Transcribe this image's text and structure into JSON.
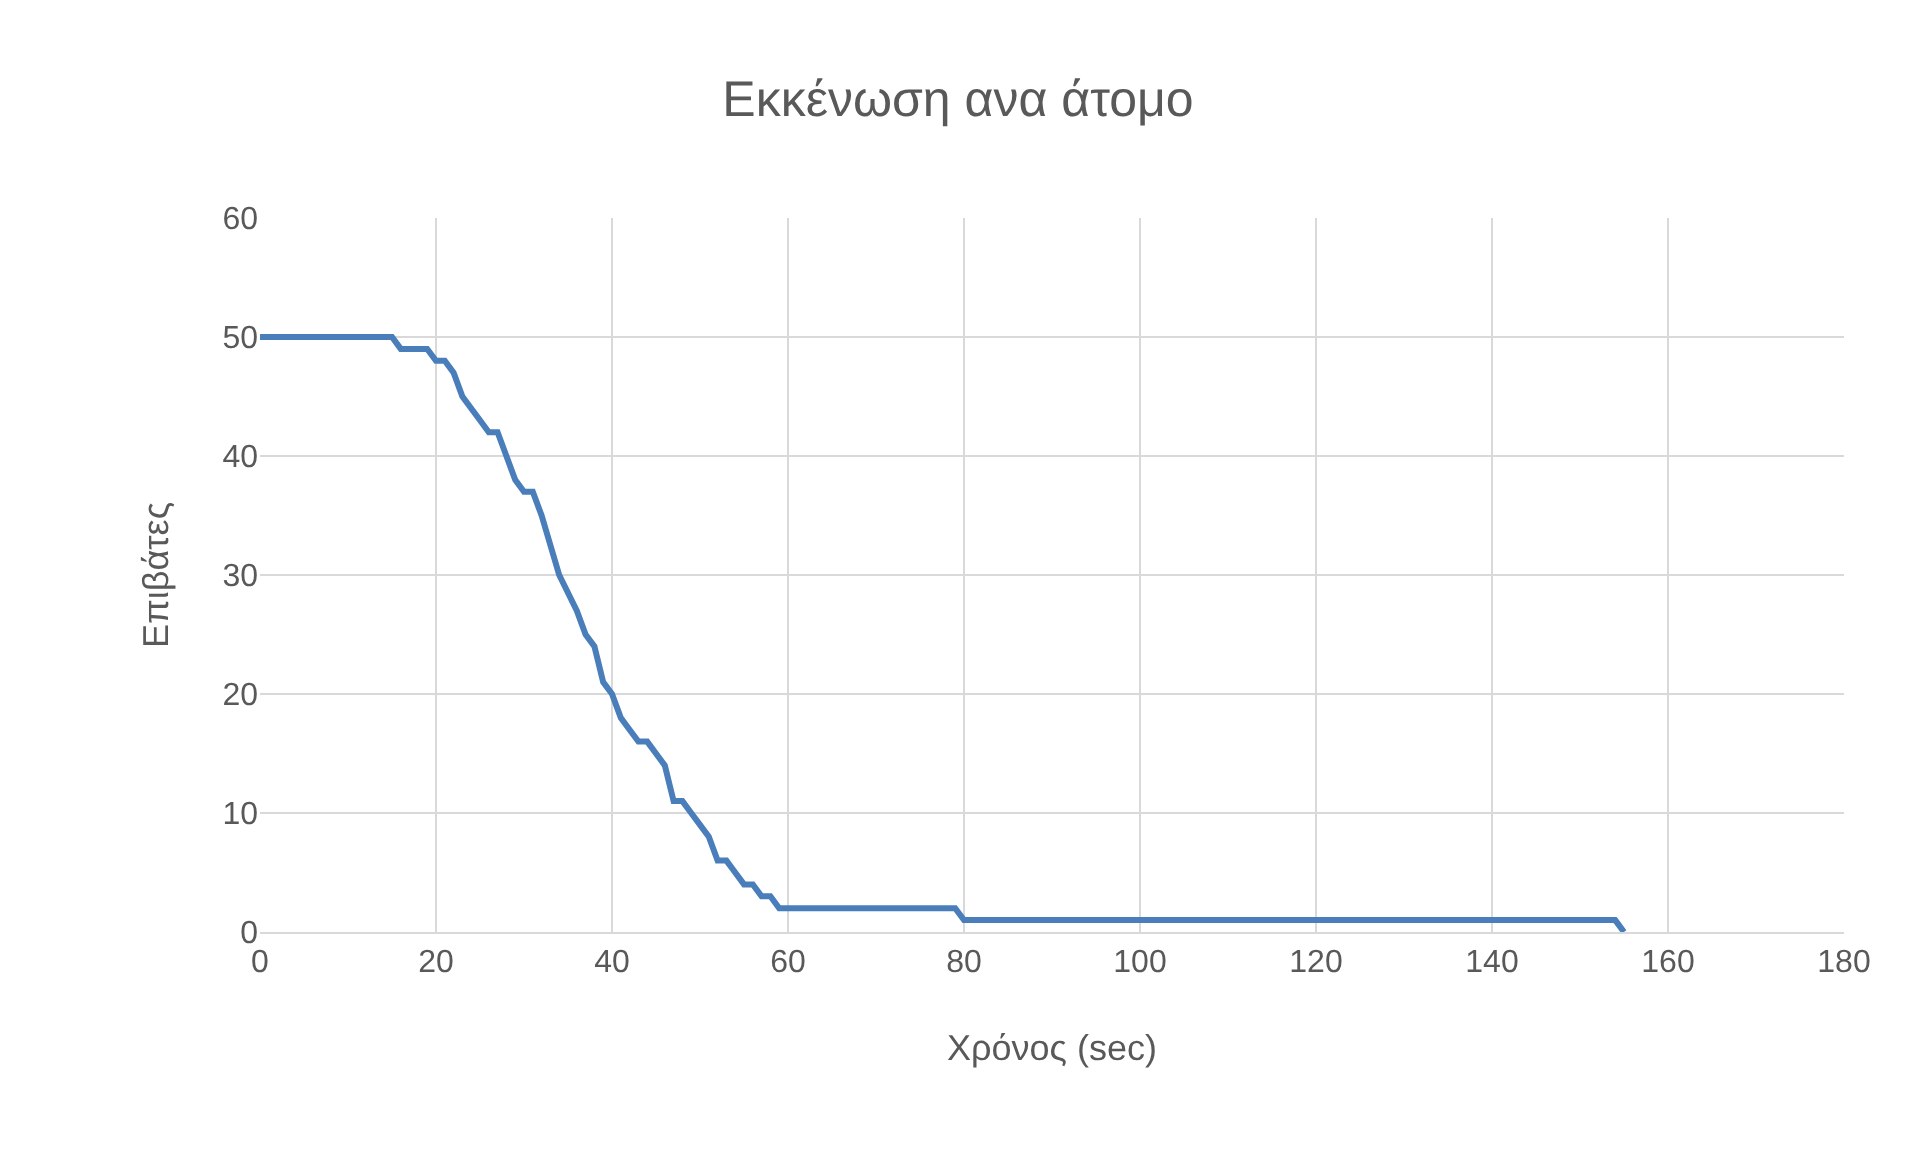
{
  "chart_data": {
    "type": "line",
    "title": "Εκκένωση ανα άτομο",
    "xlabel": "Χρόνος (sec)",
    "ylabel": "Επιβάτες",
    "x": [
      0,
      15,
      16,
      19,
      20,
      21,
      22,
      23,
      25,
      26,
      27,
      28,
      29,
      30,
      31,
      32,
      34,
      36,
      37,
      38,
      39,
      40,
      41,
      42,
      43,
      44,
      45,
      46,
      47,
      48,
      49,
      50,
      51,
      52,
      53,
      54,
      55,
      56,
      57,
      58,
      59,
      79,
      80,
      154,
      155
    ],
    "series": [
      {
        "color": "#4a7ebb",
        "values": [
          50,
          50,
          49,
          49,
          48,
          48,
          47,
          45,
          43,
          42,
          42,
          40,
          38,
          37,
          37,
          35,
          30,
          27,
          25,
          24,
          21,
          20,
          18,
          17,
          16,
          16,
          15,
          14,
          11,
          11,
          10,
          9,
          8,
          6,
          6,
          5,
          4,
          4,
          3,
          3,
          2,
          2,
          1,
          1,
          0
        ]
      }
    ],
    "xlim": [
      0,
      180
    ],
    "xticks": [
      0,
      20,
      40,
      60,
      80,
      100,
      120,
      140,
      160,
      180
    ],
    "ylim": [
      0,
      60
    ],
    "yticks": [
      0,
      10,
      20,
      30,
      40,
      50,
      60
    ],
    "grid": true,
    "marker": "none",
    "line_style": "solid"
  }
}
